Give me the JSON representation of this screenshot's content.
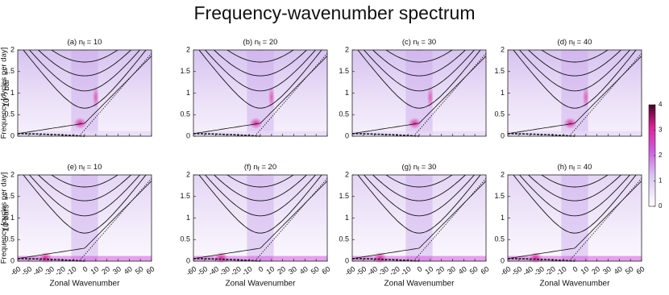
{
  "title": "Frequency-wavenumber spectrum",
  "row_labels": [
    {
      "base": "10",
      "sup": "-2",
      "unit": " bar"
    },
    {
      "base": "10 bars"
    }
  ],
  "colorbar": {
    "lim": [
      0,
      4
    ],
    "ticks": [
      0,
      1,
      2,
      3,
      4
    ]
  },
  "chart_data": [
    {
      "type": "heatmap",
      "title": {
        "prefix": "(a) n",
        "sub": "f",
        "suffix": " = 10"
      },
      "ylabel": "Frequency [cycles per day]",
      "xlim": [
        -60,
        60
      ],
      "xticks": [
        -60,
        -50,
        -40,
        -30,
        -20,
        -10,
        0,
        10,
        20,
        30,
        40,
        50,
        60
      ],
      "ylim": [
        0,
        2
      ],
      "yticks": [
        0,
        0.5,
        1,
        1.5,
        2
      ]
    },
    {
      "type": "heatmap",
      "title": {
        "prefix": "(b) n",
        "sub": "f",
        "suffix": " = 20"
      },
      "xlim": [
        -60,
        60
      ],
      "xticks": [
        -60,
        -50,
        -40,
        -30,
        -20,
        -10,
        0,
        10,
        20,
        30,
        40,
        50,
        60
      ],
      "ylim": [
        0,
        2
      ],
      "yticks": [
        0,
        0.5,
        1,
        1.5,
        2
      ]
    },
    {
      "type": "heatmap",
      "title": {
        "prefix": "(c) n",
        "sub": "f",
        "suffix": " = 30"
      },
      "xlim": [
        -60,
        60
      ],
      "xticks": [
        -60,
        -50,
        -40,
        -30,
        -20,
        -10,
        0,
        10,
        20,
        30,
        40,
        50,
        60
      ],
      "ylim": [
        0,
        2
      ],
      "yticks": [
        0,
        0.5,
        1,
        1.5,
        2
      ]
    },
    {
      "type": "heatmap",
      "title": {
        "prefix": "(d) n",
        "sub": "f",
        "suffix": " = 40"
      },
      "xlim": [
        -60,
        60
      ],
      "xticks": [
        -60,
        -50,
        -40,
        -30,
        -20,
        -10,
        0,
        10,
        20,
        30,
        40,
        50,
        60
      ],
      "ylim": [
        0,
        2
      ],
      "yticks": [
        0,
        0.5,
        1,
        1.5,
        2
      ]
    },
    {
      "type": "heatmap",
      "title": {
        "prefix": "(e) n",
        "sub": "f",
        "suffix": " = 10"
      },
      "xlabel": "Zonal Wavenumber",
      "ylabel": "Frequency [cycles per day]",
      "xlim": [
        -60,
        60
      ],
      "xticks": [
        -60,
        -50,
        -40,
        -30,
        -20,
        -10,
        0,
        10,
        20,
        30,
        40,
        50,
        60
      ],
      "ylim": [
        0,
        2
      ],
      "yticks": [
        0,
        0.5,
        1,
        1.5,
        2
      ]
    },
    {
      "type": "heatmap",
      "title": {
        "prefix": "(f) n",
        "sub": "f",
        "suffix": " = 20"
      },
      "xlabel": "Zonal Wavenumber",
      "xlim": [
        -60,
        60
      ],
      "xticks": [
        -60,
        -50,
        -40,
        -30,
        -20,
        -10,
        0,
        10,
        20,
        30,
        40,
        50,
        60
      ],
      "ylim": [
        0,
        2
      ],
      "yticks": [
        0,
        0.5,
        1,
        1.5,
        2
      ]
    },
    {
      "type": "heatmap",
      "title": {
        "prefix": "(g) n",
        "sub": "f",
        "suffix": " = 30"
      },
      "xlabel": "Zonal Wavenumber",
      "xlim": [
        -60,
        60
      ],
      "xticks": [
        -60,
        -50,
        -40,
        -30,
        -20,
        -10,
        0,
        10,
        20,
        30,
        40,
        50,
        60
      ],
      "ylim": [
        0,
        2
      ],
      "yticks": [
        0,
        0.5,
        1,
        1.5,
        2
      ]
    },
    {
      "type": "heatmap",
      "title": {
        "prefix": "(h) n",
        "sub": "f",
        "suffix": " = 40"
      },
      "xlabel": "Zonal Wavenumber",
      "xlim": [
        -60,
        60
      ],
      "xticks": [
        -60,
        -50,
        -40,
        -30,
        -20,
        -10,
        0,
        10,
        20,
        30,
        40,
        50,
        60
      ],
      "ylim": [
        0,
        2
      ],
      "yticks": [
        0,
        0.5,
        1,
        1.5,
        2
      ]
    }
  ]
}
